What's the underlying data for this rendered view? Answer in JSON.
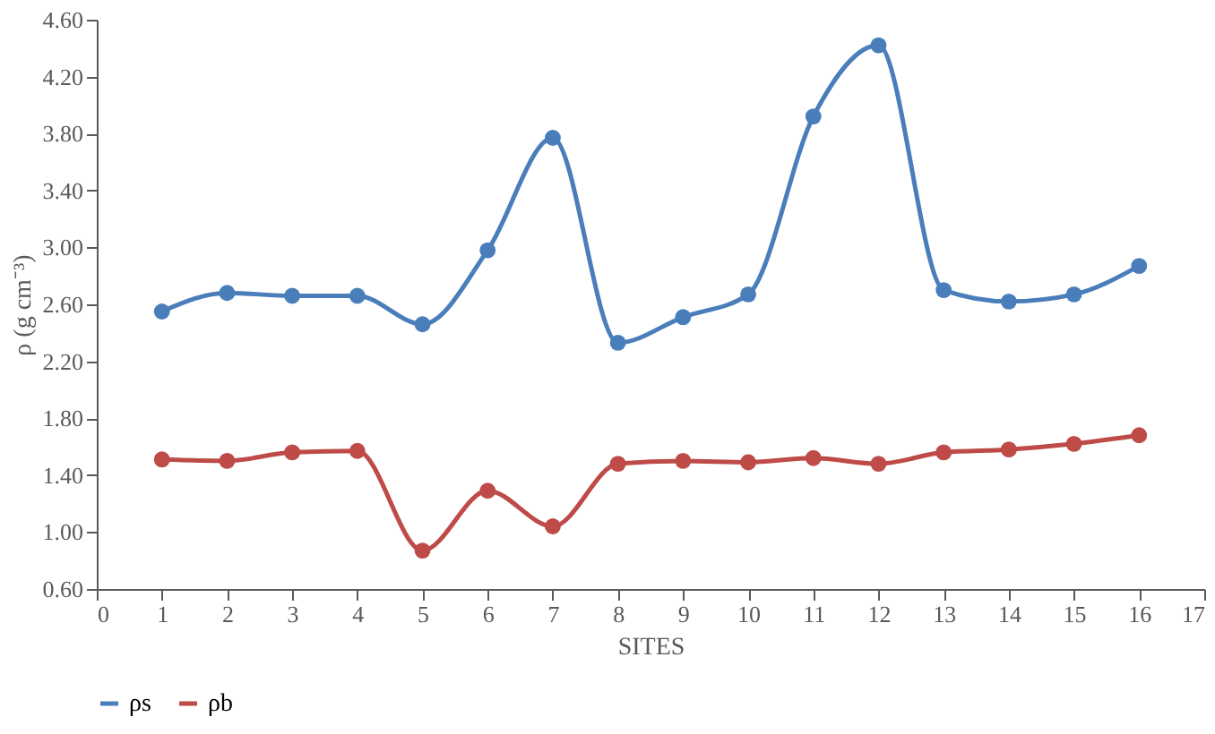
{
  "chart_data": {
    "type": "line",
    "xlabel": "SITES",
    "ylabel": "ρ (g cm⁻³)",
    "x": [
      1,
      2,
      3,
      4,
      5,
      6,
      7,
      8,
      9,
      10,
      11,
      12,
      13,
      14,
      15,
      16
    ],
    "series": [
      {
        "name": "ρs",
        "color": "#4a7ebb",
        "values": [
          2.55,
          2.68,
          2.66,
          2.66,
          2.46,
          2.98,
          3.77,
          2.33,
          2.51,
          2.67,
          3.92,
          4.42,
          2.7,
          2.62,
          2.67,
          2.87
        ]
      },
      {
        "name": "ρb",
        "color": "#be4b48",
        "values": [
          1.51,
          1.5,
          1.56,
          1.57,
          0.87,
          1.29,
          1.04,
          1.48,
          1.5,
          1.49,
          1.52,
          1.48,
          1.56,
          1.58,
          1.62,
          1.68
        ]
      }
    ],
    "xlim": [
      0,
      17
    ],
    "xticks": [
      0,
      1,
      2,
      3,
      4,
      5,
      6,
      7,
      8,
      9,
      10,
      11,
      12,
      13,
      14,
      15,
      16,
      17
    ],
    "ylim": [
      0.6,
      4.6
    ],
    "yticks": [
      {
        "value": 0.6,
        "label": "0.60"
      },
      {
        "value": 1.0,
        "label": "1.00"
      },
      {
        "value": 1.4,
        "label": "1.40"
      },
      {
        "value": 1.8,
        "label": "1.80"
      },
      {
        "value": 2.2,
        "label": "2.20"
      },
      {
        "value": 2.6,
        "label": "2.60"
      },
      {
        "value": 3.0,
        "label": "3.00"
      },
      {
        "value": 3.4,
        "label": "3.40"
      },
      {
        "value": 3.8,
        "label": "3.80"
      },
      {
        "value": 4.2,
        "label": "4.20"
      },
      {
        "value": 4.6,
        "label": "4.60"
      }
    ],
    "grid": false,
    "legend": "bottom",
    "marker": "circle",
    "line_style": "solid"
  }
}
